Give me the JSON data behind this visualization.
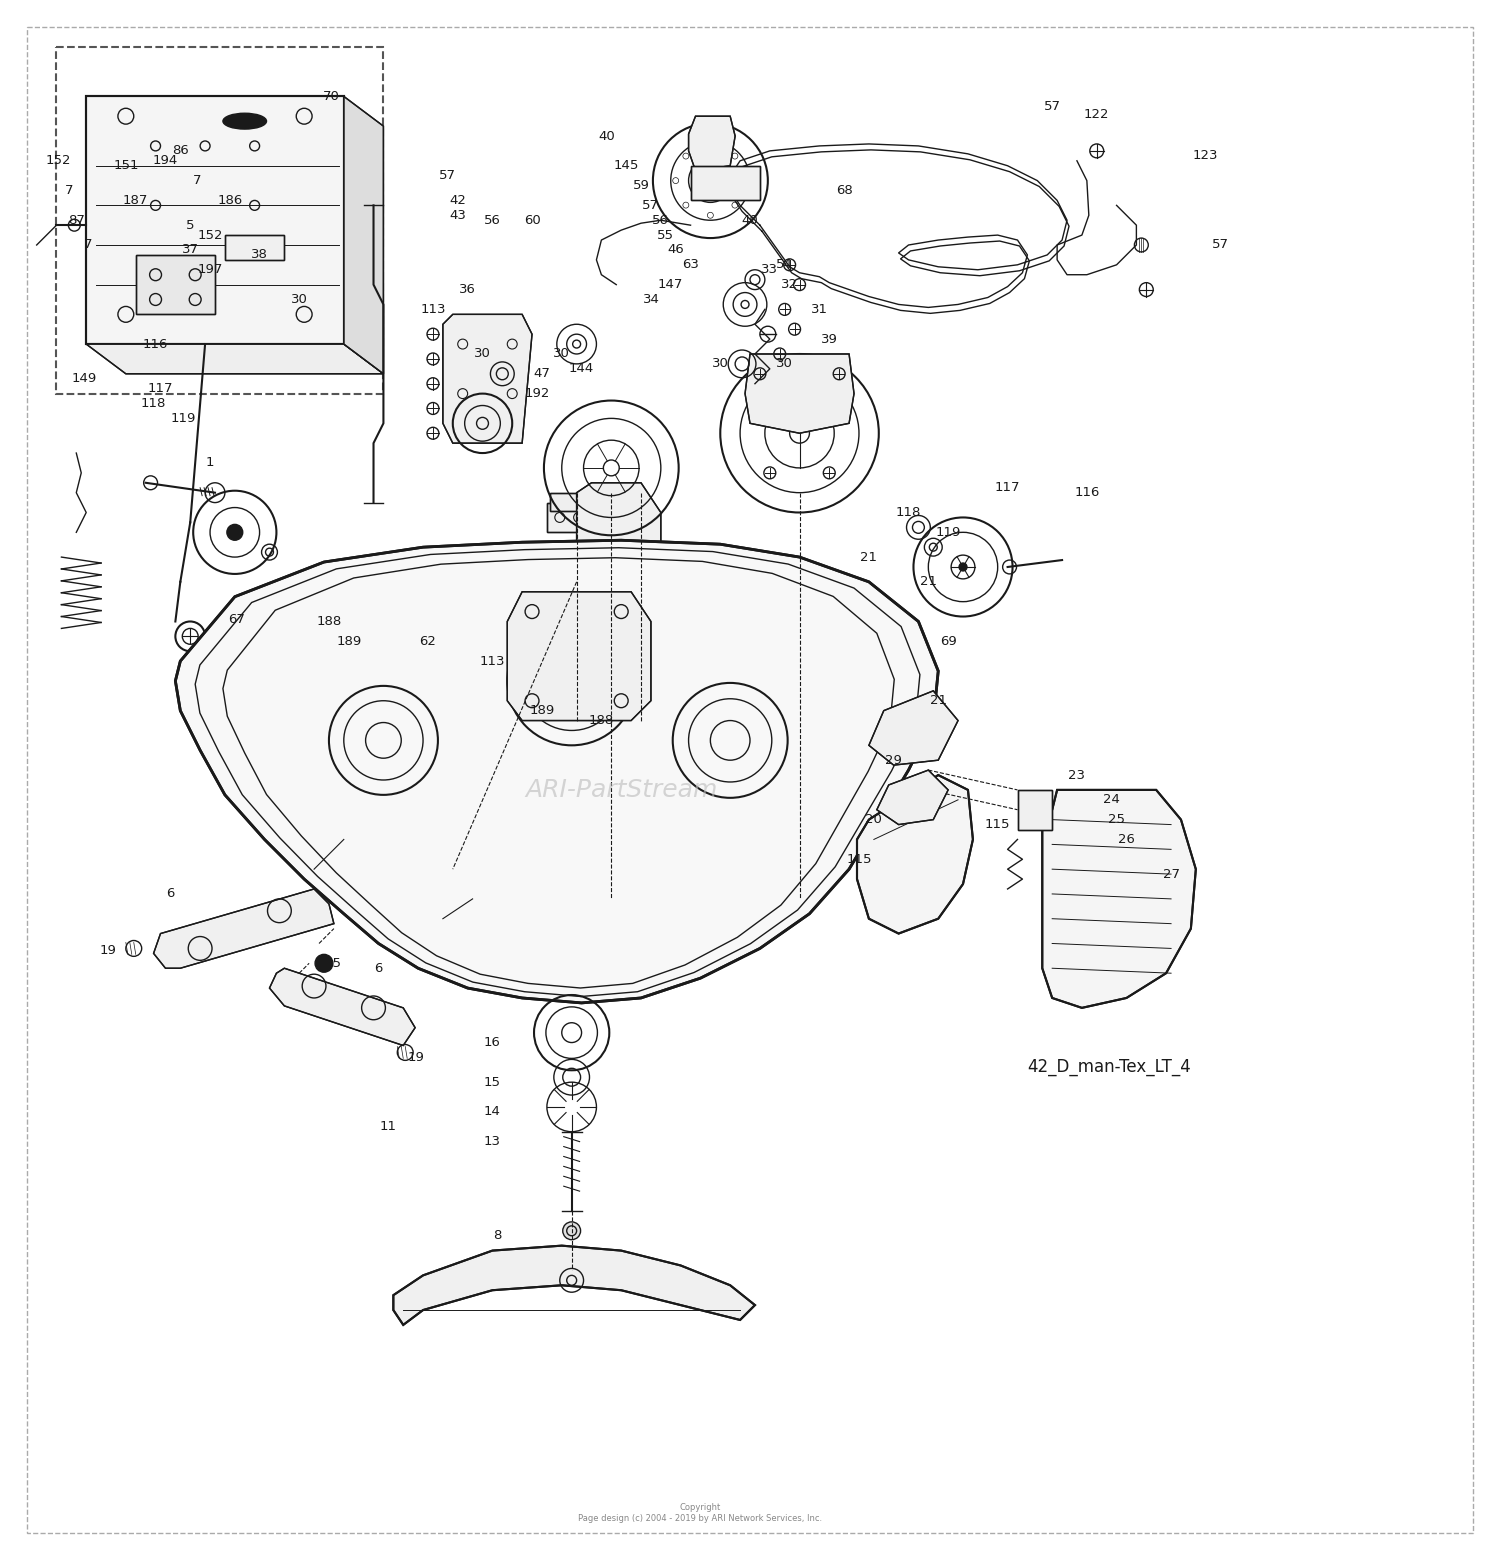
{
  "background_color": "#ffffff",
  "diagram_color": "#1a1a1a",
  "watermark_text": "ARI-PartStream",
  "watermark_color": "#bbbbbb",
  "diagram_label": "42_D_man-Tex_LT_4",
  "copyright_text": "Copyright\nPage design (c) 2004 - 2019 by ARI Network Services, Inc.",
  "figsize": [
    15.0,
    15.6
  ],
  "dpi": 100
}
